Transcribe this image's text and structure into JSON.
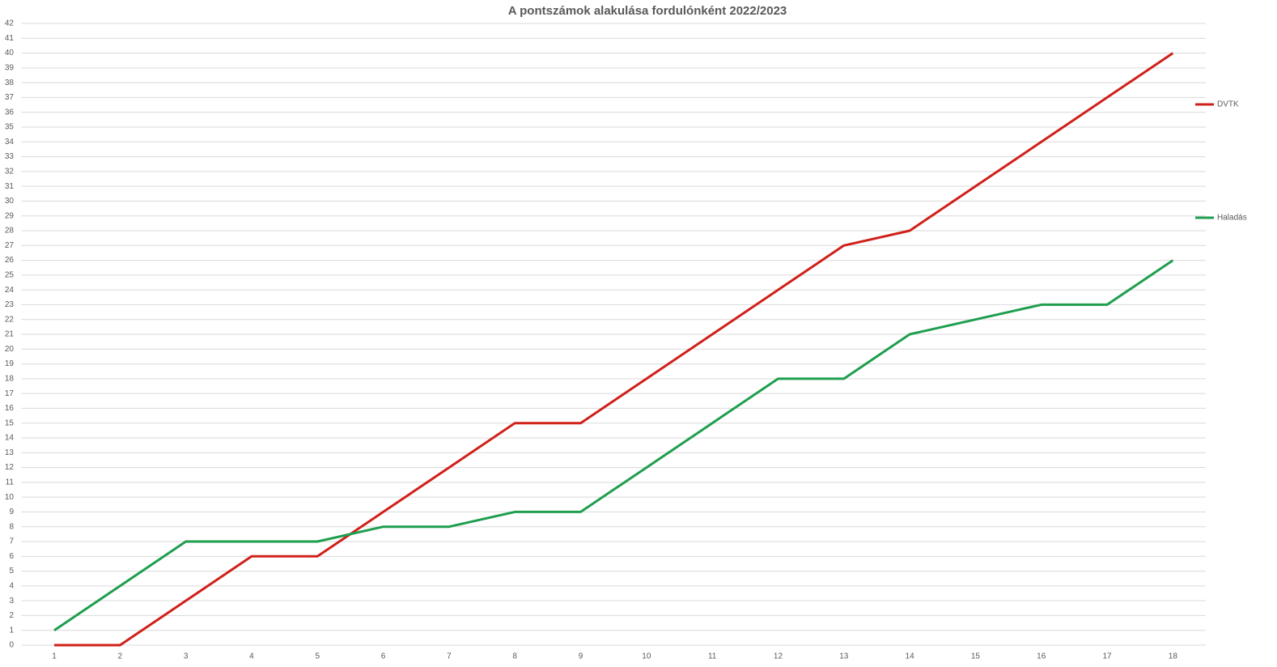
{
  "chart_data": {
    "type": "line",
    "title": "A pontszámok alakulása fordulónként 2022/2023",
    "categories": [
      1,
      2,
      3,
      4,
      5,
      6,
      7,
      8,
      9,
      10,
      11,
      12,
      13,
      14,
      15,
      16,
      17,
      18
    ],
    "series": [
      {
        "name": "DVTK",
        "color": "#d0201a",
        "values": [
          0,
          0,
          3,
          6,
          6,
          9,
          12,
          15,
          15,
          18,
          21,
          24,
          27,
          28,
          31,
          34,
          37,
          40
        ]
      },
      {
        "name": "Haladás",
        "color": "#1f9e4e",
        "values": [
          1,
          4,
          7,
          7,
          7,
          8,
          8,
          9,
          9,
          12,
          15,
          18,
          18,
          21,
          22,
          23,
          23,
          26
        ]
      }
    ],
    "ylim": [
      0,
      42
    ],
    "yticks": [
      0,
      1,
      2,
      3,
      4,
      5,
      6,
      7,
      8,
      9,
      10,
      11,
      12,
      13,
      14,
      15,
      16,
      17,
      18,
      19,
      20,
      21,
      22,
      23,
      24,
      25,
      26,
      27,
      28,
      29,
      30,
      31,
      32,
      33,
      34,
      35,
      36,
      37,
      38,
      39,
      40,
      41,
      42
    ],
    "grid": true,
    "legend": "right"
  }
}
